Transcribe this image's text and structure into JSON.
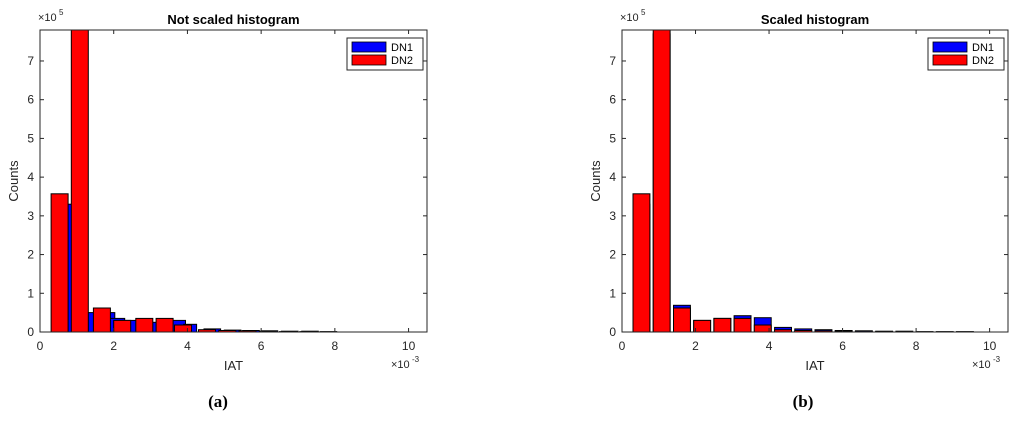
{
  "chart_data": [
    {
      "type": "bar",
      "title": "Not scaled histogram",
      "xlabel": "IAT",
      "ylabel": "Counts",
      "x_multiplier_label": "×10",
      "x_multiplier_exp": "-3",
      "y_multiplier_label": "×10",
      "y_multiplier_exp": "5",
      "xlim": [
        0,
        10.5
      ],
      "ylim": [
        0,
        7.8
      ],
      "xticks": [
        0,
        2,
        4,
        6,
        8,
        10
      ],
      "yticks": [
        0,
        1,
        2,
        3,
        4,
        5,
        6,
        7
      ],
      "grid": false,
      "legend_position": "top-right",
      "caption": "(a)",
      "series": [
        {
          "name": "DN1",
          "color": "#0000ff",
          "bins": [
            {
              "x": 0.55,
              "w": 0.48,
              "v": 3.3
            },
            {
              "x": 1.0,
              "w": 0.48,
              "v": 0.5
            },
            {
              "x": 1.55,
              "w": 0.48,
              "v": 0.5
            },
            {
              "x": 1.9,
              "w": 0.4,
              "v": 0.35
            },
            {
              "x": 2.25,
              "w": 0.4,
              "v": 0.3
            },
            {
              "x": 2.85,
              "w": 0.4,
              "v": 0.25
            },
            {
              "x": 3.55,
              "w": 0.4,
              "v": 0.3
            },
            {
              "x": 3.9,
              "w": 0.35,
              "v": 0.2
            },
            {
              "x": 4.45,
              "w": 0.45,
              "v": 0.08
            },
            {
              "x": 5.0,
              "w": 0.45,
              "v": 0.05
            },
            {
              "x": 5.5,
              "w": 0.45,
              "v": 0.04
            },
            {
              "x": 6.0,
              "w": 0.45,
              "v": 0.03
            },
            {
              "x": 6.55,
              "w": 0.45,
              "v": 0.02
            },
            {
              "x": 7.1,
              "w": 0.45,
              "v": 0.02
            },
            {
              "x": 7.6,
              "w": 0.45,
              "v": 0.01
            }
          ]
        },
        {
          "name": "DN2",
          "color": "#ff0000",
          "bins": [
            {
              "x": 0.3,
              "w": 0.46,
              "v": 3.57
            },
            {
              "x": 0.85,
              "w": 0.46,
              "v": 7.8
            },
            {
              "x": 1.45,
              "w": 0.46,
              "v": 0.62
            },
            {
              "x": 2.0,
              "w": 0.46,
              "v": 0.3
            },
            {
              "x": 2.6,
              "w": 0.46,
              "v": 0.35
            },
            {
              "x": 3.15,
              "w": 0.46,
              "v": 0.35
            },
            {
              "x": 3.65,
              "w": 0.46,
              "v": 0.18
            },
            {
              "x": 4.3,
              "w": 0.46,
              "v": 0.06
            },
            {
              "x": 4.85,
              "w": 0.46,
              "v": 0.04
            },
            {
              "x": 5.4,
              "w": 0.46,
              "v": 0.03
            },
            {
              "x": 5.95,
              "w": 0.46,
              "v": 0.02
            },
            {
              "x": 6.5,
              "w": 0.46,
              "v": 0.01
            },
            {
              "x": 7.05,
              "w": 0.46,
              "v": 0.01
            }
          ]
        }
      ]
    },
    {
      "type": "bar",
      "title": "Scaled histogram",
      "xlabel": "IAT",
      "ylabel": "Counts",
      "x_multiplier_label": "×10",
      "x_multiplier_exp": "-3",
      "y_multiplier_label": "×10",
      "y_multiplier_exp": "5",
      "xlim": [
        0,
        10.5
      ],
      "ylim": [
        0,
        7.8
      ],
      "xticks": [
        0,
        2,
        4,
        6,
        8,
        10
      ],
      "yticks": [
        0,
        1,
        2,
        3,
        4,
        5,
        6,
        7
      ],
      "grid": false,
      "legend_position": "top-right",
      "caption": "(b)",
      "series": [
        {
          "name": "DN1",
          "color": "#0000ff",
          "bins": [
            {
              "x": 0.3,
              "w": 0.46,
              "v": 3.3
            },
            {
              "x": 0.85,
              "w": 0.46,
              "v": 7.7
            },
            {
              "x": 1.4,
              "w": 0.46,
              "v": 0.69
            },
            {
              "x": 1.95,
              "w": 0.46,
              "v": 0.3
            },
            {
              "x": 2.5,
              "w": 0.46,
              "v": 0.35
            },
            {
              "x": 3.05,
              "w": 0.46,
              "v": 0.42
            },
            {
              "x": 3.6,
              "w": 0.46,
              "v": 0.37
            },
            {
              "x": 4.15,
              "w": 0.46,
              "v": 0.12
            },
            {
              "x": 4.7,
              "w": 0.46,
              "v": 0.08
            },
            {
              "x": 5.25,
              "w": 0.46,
              "v": 0.06
            },
            {
              "x": 5.8,
              "w": 0.46,
              "v": 0.04
            },
            {
              "x": 6.35,
              "w": 0.46,
              "v": 0.03
            },
            {
              "x": 6.9,
              "w": 0.46,
              "v": 0.02
            },
            {
              "x": 7.45,
              "w": 0.46,
              "v": 0.02
            },
            {
              "x": 8.0,
              "w": 0.46,
              "v": 0.01
            },
            {
              "x": 8.55,
              "w": 0.46,
              "v": 0.01
            },
            {
              "x": 9.1,
              "w": 0.46,
              "v": 0.01
            }
          ]
        },
        {
          "name": "DN2",
          "color": "#ff0000",
          "bins": [
            {
              "x": 0.3,
              "w": 0.46,
              "v": 3.57
            },
            {
              "x": 0.85,
              "w": 0.46,
              "v": 7.8
            },
            {
              "x": 1.4,
              "w": 0.46,
              "v": 0.62
            },
            {
              "x": 1.95,
              "w": 0.46,
              "v": 0.3
            },
            {
              "x": 2.5,
              "w": 0.46,
              "v": 0.35
            },
            {
              "x": 3.05,
              "w": 0.46,
              "v": 0.35
            },
            {
              "x": 3.6,
              "w": 0.46,
              "v": 0.18
            },
            {
              "x": 4.15,
              "w": 0.46,
              "v": 0.06
            },
            {
              "x": 4.7,
              "w": 0.46,
              "v": 0.04
            },
            {
              "x": 5.25,
              "w": 0.46,
              "v": 0.03
            },
            {
              "x": 5.8,
              "w": 0.46,
              "v": 0.02
            },
            {
              "x": 6.35,
              "w": 0.46,
              "v": 0.01
            },
            {
              "x": 6.9,
              "w": 0.46,
              "v": 0.01
            }
          ]
        }
      ]
    }
  ]
}
